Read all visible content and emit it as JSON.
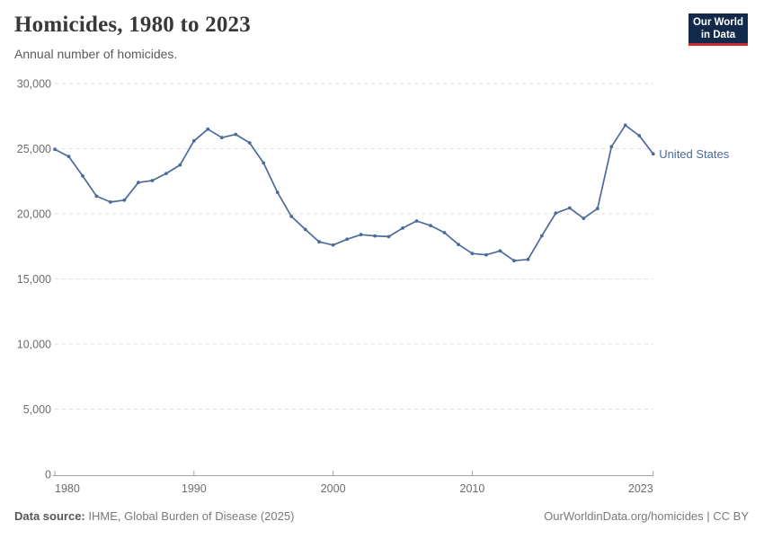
{
  "header": {
    "title": "Homicides, 1980 to 2023",
    "subtitle": "Annual number of homicides.",
    "logo": {
      "line1": "Our World",
      "line2": "in Data",
      "bg_color": "#12294B",
      "accent_color": "#CE2A35"
    }
  },
  "chart_data": {
    "type": "line",
    "title": "Homicides, 1980 to 2023",
    "subtitle": "Annual number of homicides.",
    "x": [
      1980,
      1981,
      1982,
      1983,
      1984,
      1985,
      1986,
      1987,
      1988,
      1989,
      1990,
      1991,
      1992,
      1993,
      1994,
      1995,
      1996,
      1997,
      1998,
      1999,
      2000,
      2001,
      2002,
      2003,
      2004,
      2005,
      2006,
      2007,
      2008,
      2009,
      2010,
      2011,
      2012,
      2013,
      2014,
      2015,
      2016,
      2017,
      2018,
      2019,
      2020,
      2021,
      2022,
      2023
    ],
    "series": [
      {
        "name": "United States",
        "color": "#4C6A9C",
        "values": [
          24950,
          24400,
          22900,
          21350,
          20900,
          21050,
          22400,
          22550,
          23100,
          23750,
          25600,
          26500,
          25850,
          26100,
          25450,
          23900,
          21650,
          19800,
          18800,
          17850,
          17600,
          18050,
          18400,
          18300,
          18250,
          18900,
          19450,
          19100,
          18550,
          17650,
          16950,
          16850,
          17150,
          16400,
          16500,
          18300,
          20050,
          20450,
          19650,
          20400,
          25150,
          26800,
          26000,
          24600
        ]
      }
    ],
    "xlabel": "",
    "ylabel": "",
    "xlim": [
      1980,
      2023
    ],
    "ylim": [
      0,
      30000
    ],
    "x_ticks": [
      1980,
      1990,
      2000,
      2010,
      2023
    ],
    "y_ticks": [
      0,
      5000,
      10000,
      15000,
      20000,
      25000,
      30000
    ],
    "grid": "dashed-horizontal",
    "legend_position": "end-of-line-label",
    "end_label": "United States"
  },
  "footer": {
    "source_label": "Data source:",
    "source_value": " IHME, Global Burden of Disease (2025)",
    "license": "OurWorldinData.org/homicides | CC BY"
  }
}
